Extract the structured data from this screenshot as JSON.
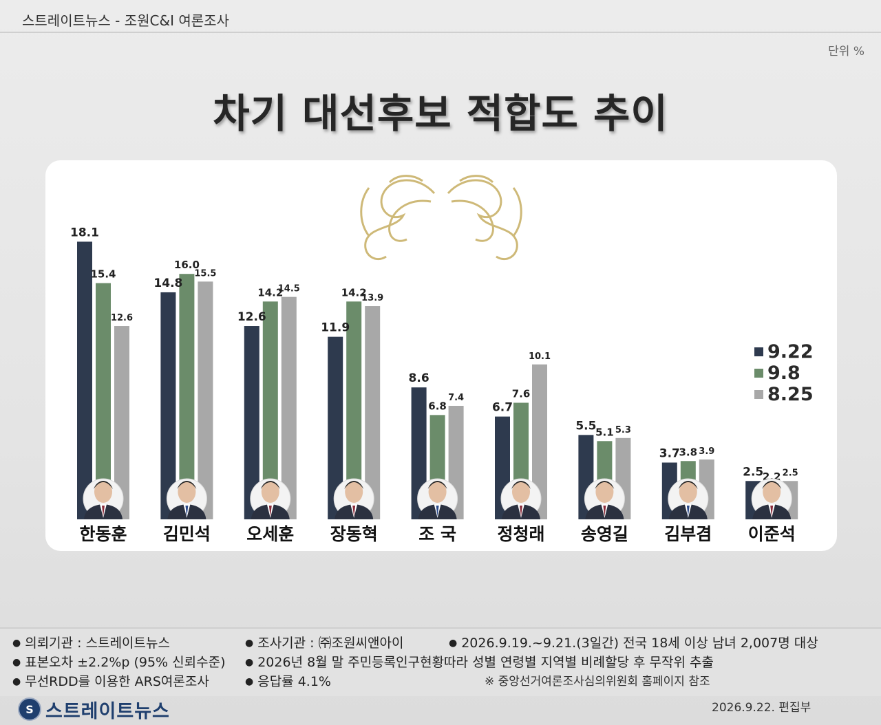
{
  "header": {
    "source": "스트레이트뉴스 - 조원C&I 여론조사",
    "unit": "단위 %"
  },
  "title": "차기 대선후보 적합도 추이",
  "chart_data": {
    "type": "bar",
    "title": "차기 대선후보 적합도 추이",
    "unit": "단위 %",
    "xlabel": "",
    "ylabel": "",
    "ylim": [
      0,
      20
    ],
    "grid": false,
    "legend_position": "right",
    "categories": [
      "한동훈",
      "김민석",
      "오세훈",
      "장동혁",
      "조 국",
      "정청래",
      "송영길",
      "김부겸",
      "이준석"
    ],
    "series": [
      {
        "name": "9.22",
        "color": "#2e3a4e",
        "values": [
          18.1,
          14.8,
          12.6,
          11.9,
          8.6,
          6.7,
          5.5,
          3.7,
          2.5
        ]
      },
      {
        "name": "9.8",
        "color": "#6b8c6a",
        "values": [
          15.4,
          16.0,
          14.2,
          14.2,
          6.8,
          7.6,
          5.1,
          3.8,
          2.2
        ]
      },
      {
        "name": "8.25",
        "color": "#a8a8a8",
        "values": [
          12.6,
          15.5,
          14.5,
          13.9,
          7.4,
          10.1,
          5.3,
          3.9,
          2.5
        ]
      }
    ]
  },
  "footer": {
    "client": "의뢰기관 : 스트레이트뉴스",
    "agency": "조사기관 : ㈜조원씨앤아이",
    "period": "2026.9.19.~9.21.(3일간) 전국 18세 이상 남녀 2,007명 대상",
    "error": "표본오차 ±2.2%p (95% 신뢰수준)",
    "weighting": "2026년 8월 말 주민등록인구현황따라 성별 연령별 지역별 비례할당 후 무작위 추출",
    "method": "무선RDD를 이용한 ARS여론조사",
    "response": "응답률 4.1%",
    "note": "※ 중앙선거여론조사심의위원회 홈페이지 참조",
    "brand_logo_text": "스트레이트뉴스",
    "date": "2026.9.22.  편집부"
  },
  "icons": {
    "ornament": "phoenix-ornament-icon",
    "portrait": "candidate-portrait-icon"
  }
}
